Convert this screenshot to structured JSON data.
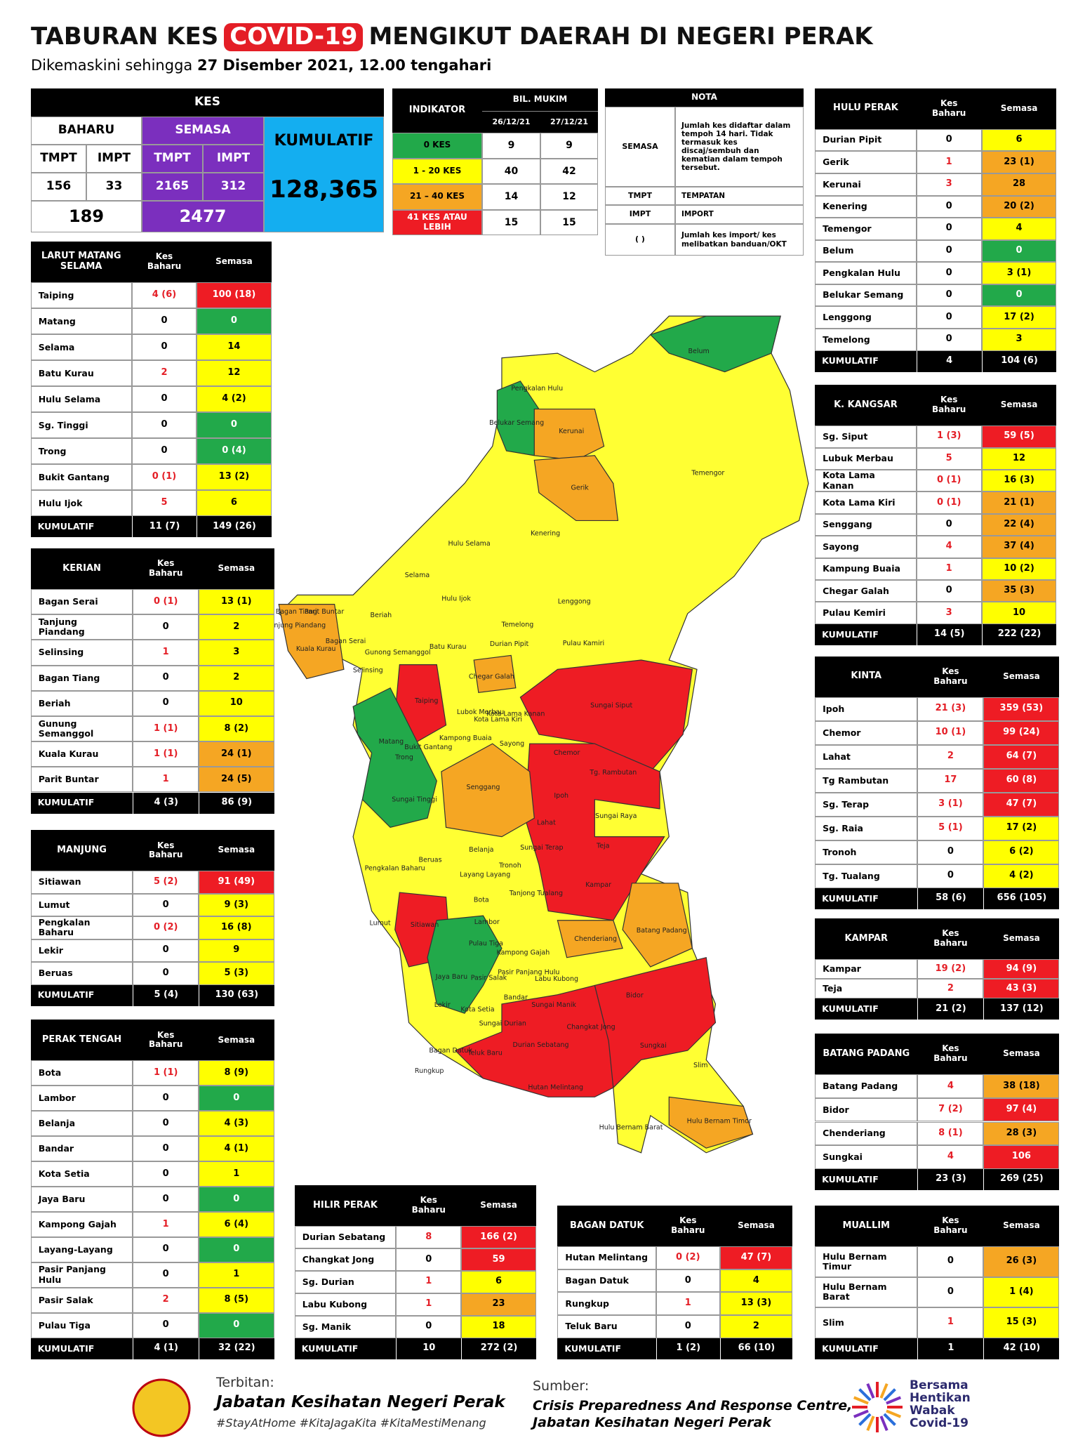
{
  "header": {
    "title_a": "TABURAN KES",
    "title_b": "COVID-19",
    "title_c": "MENGIKUT DAERAH DI NEGERI PERAK",
    "subtitle_a": "Dikemaskini sehingga",
    "subtitle_b": "27 Disember 2021, 12.00 tengahari"
  },
  "summary": {
    "kes": "KES",
    "baharu": "BAHARU",
    "semasa": "SEMASA",
    "cols": [
      "TMPT",
      "IMPT",
      "TMPT",
      "IMPT"
    ],
    "nums": [
      "156",
      "33",
      "2165",
      "312"
    ],
    "baharu_total": "189",
    "semasa_total": "2477",
    "kumulatif": "KUMULATIF",
    "kumulatif_value": "128,365"
  },
  "indicator": {
    "title": "INDIKATOR",
    "bil": "BIL. MUKIM",
    "dates": [
      "26/12/21",
      "27/12/21"
    ],
    "rows": [
      [
        "0 KES",
        "9",
        "9",
        "#22a94a"
      ],
      [
        "1 - 20 KES",
        "40",
        "42",
        "#ffff00"
      ],
      [
        "21 – 40 KES",
        "14",
        "12",
        "#f5a623"
      ],
      [
        "41 KES ATAU LEBIH",
        "15",
        "15",
        "#ee1c24"
      ]
    ]
  },
  "nota": {
    "title": "NOTA",
    "rows": [
      [
        "SEMASA",
        "Jumlah kes didaftar dalam tempoh 14 hari. Tidak termasuk kes discaj/sembuh dan kematian dalam tempoh tersebut."
      ],
      [
        "TMPT",
        "TEMPATAN"
      ],
      [
        "IMPT",
        "IMPORT"
      ],
      [
        "( )",
        "Jumlah kes import/ kes melibatkan banduan/OKT"
      ]
    ]
  },
  "tables": [
    {
      "title": "LARUT MATANG SELAMA",
      "h1": "Kes Baharu",
      "h2": "Semasa",
      "rows": [
        [
          "Taiping",
          "4 (6)",
          "100 (18)",
          "#ee1c24"
        ],
        [
          "Matang",
          "0",
          "0",
          "#22a94a"
        ],
        [
          "Selama",
          "0",
          "14",
          "#ffff00"
        ],
        [
          "Batu Kurau",
          "2",
          "12",
          "#ffff00"
        ],
        [
          "Hulu Selama",
          "0",
          "4 (2)",
          "#ffff00"
        ],
        [
          "Sg. Tinggi",
          "0",
          "0",
          "#22a94a"
        ],
        [
          "Trong",
          "0",
          "0 (4)",
          "#22a94a"
        ],
        [
          "Bukit Gantang",
          "0 (1)",
          "13 (2)",
          "#ffff00"
        ],
        [
          "Hulu Ijok",
          "5",
          "6",
          "#ffff00"
        ]
      ],
      "total": [
        "KUMULATIF",
        "11 (7)",
        "149 (26)"
      ]
    },
    {
      "title": "KERIAN",
      "h1": "Kes Baharu",
      "h2": "Semasa",
      "rows": [
        [
          "Bagan Serai",
          "0 (1)",
          "13 (1)",
          "#ffff00"
        ],
        [
          "Tanjung Piandang",
          "0",
          "2",
          "#ffff00"
        ],
        [
          "Selinsing",
          "1",
          "3",
          "#ffff00"
        ],
        [
          "Bagan Tiang",
          "0",
          "2",
          "#ffff00"
        ],
        [
          "Beriah",
          "0",
          "10",
          "#ffff00"
        ],
        [
          "Gunung Semanggol",
          "1 (1)",
          "8 (2)",
          "#ffff00"
        ],
        [
          "Kuala Kurau",
          "1 (1)",
          "24 (1)",
          "#f5a623"
        ],
        [
          "Parit Buntar",
          "1",
          "24 (5)",
          "#f5a623"
        ]
      ],
      "total": [
        "KUMULATIF",
        "4 (3)",
        "86 (9)"
      ]
    },
    {
      "title": "MANJUNG",
      "h1": "Kes Baharu",
      "h2": "Semasa",
      "rows": [
        [
          "Sitiawan",
          "5 (2)",
          "91 (49)",
          "#ee1c24"
        ],
        [
          "Lumut",
          "0",
          "9 (3)",
          "#ffff00"
        ],
        [
          "Pengkalan Baharu",
          "0 (2)",
          "16 (8)",
          "#ffff00"
        ],
        [
          "Lekir",
          "0",
          "9",
          "#ffff00"
        ],
        [
          "Beruas",
          "0",
          "5 (3)",
          "#ffff00"
        ]
      ],
      "total": [
        "KUMULATIF",
        "5 (4)",
        "130 (63)"
      ]
    },
    {
      "title": "PERAK TENGAH",
      "h1": "Kes Baharu",
      "h2": "Semasa",
      "rows": [
        [
          "Bota",
          "1 (1)",
          "8 (9)",
          "#ffff00"
        ],
        [
          "Lambor",
          "0",
          "0",
          "#22a94a"
        ],
        [
          "Belanja",
          "0",
          "4 (3)",
          "#ffff00"
        ],
        [
          "Bandar",
          "0",
          "4 (1)",
          "#ffff00"
        ],
        [
          "Kota Setia",
          "0",
          "1",
          "#ffff00"
        ],
        [
          "Jaya Baru",
          "0",
          "0",
          "#22a94a"
        ],
        [
          "Kampong Gajah",
          "1",
          "6 (4)",
          "#ffff00"
        ],
        [
          "Layang-Layang",
          "0",
          "0",
          "#22a94a"
        ],
        [
          "Pasir Panjang Hulu",
          "0",
          "1",
          "#ffff00"
        ],
        [
          "Pasir Salak",
          "2",
          "8 (5)",
          "#ffff00"
        ],
        [
          "Pulau Tiga",
          "0",
          "0",
          "#22a94a"
        ]
      ],
      "total": [
        "KUMULATIF",
        "4 (1)",
        "32 (22)"
      ]
    },
    {
      "title": "HILIR PERAK",
      "h1": "Kes Baharu",
      "h2": "Semasa",
      "rows": [
        [
          "Durian Sebatang",
          "8",
          "166 (2)",
          "#ee1c24"
        ],
        [
          "Changkat Jong",
          "0",
          "59",
          "#ee1c24"
        ],
        [
          "Sg. Durian",
          "1",
          "6",
          "#ffff00"
        ],
        [
          "Labu Kubong",
          "1",
          "23",
          "#f5a623"
        ],
        [
          "Sg. Manik",
          "0",
          "18",
          "#ffff00"
        ]
      ],
      "total": [
        "KUMULATIF",
        "10",
        "272 (2)"
      ]
    },
    {
      "title": "BAGAN DATUK",
      "h1": "Kes Baharu",
      "h2": "Semasa",
      "rows": [
        [
          "Hutan Melintang",
          "0 (2)",
          "47 (7)",
          "#ee1c24"
        ],
        [
          "Bagan Datuk",
          "0",
          "4",
          "#ffff00"
        ],
        [
          "Rungkup",
          "1",
          "13 (3)",
          "#ffff00"
        ],
        [
          "Teluk Baru",
          "0",
          "2",
          "#ffff00"
        ]
      ],
      "total": [
        "KUMULATIF",
        "1 (2)",
        "66 (10)"
      ]
    },
    {
      "title": "HULU PERAK",
      "h1": "Kes Baharu",
      "h2": "Semasa",
      "rows": [
        [
          "Durian Pipit",
          "0",
          "6",
          "#ffff00"
        ],
        [
          "Gerik",
          "1",
          "23 (1)",
          "#f5a623"
        ],
        [
          "Kerunai",
          "3",
          "28",
          "#f5a623"
        ],
        [
          "Kenering",
          "0",
          "20 (2)",
          "#f5a623"
        ],
        [
          "Temengor",
          "0",
          "4",
          "#ffff00"
        ],
        [
          "Belum",
          "0",
          "0",
          "#22a94a"
        ],
        [
          "Pengkalan Hulu",
          "0",
          "3 (1)",
          "#ffff00"
        ],
        [
          "Belukar Semang",
          "0",
          "0",
          "#22a94a"
        ],
        [
          "Lenggong",
          "0",
          "17 (2)",
          "#ffff00"
        ],
        [
          "Temelong",
          "0",
          "3",
          "#ffff00"
        ]
      ],
      "total": [
        "KUMULATIF",
        "4",
        "104 (6)"
      ]
    },
    {
      "title": "K. KANGSAR",
      "h1": "Kes Baharu",
      "h2": "Semasa",
      "rows": [
        [
          "Sg. Siput",
          "1 (3)",
          "59 (5)",
          "#ee1c24"
        ],
        [
          "Lubuk Merbau",
          "5",
          "12",
          "#ffff00"
        ],
        [
          "Kota Lama Kanan",
          "0 (1)",
          "16 (3)",
          "#ffff00"
        ],
        [
          "Kota Lama Kiri",
          "0 (1)",
          "21 (1)",
          "#f5a623"
        ],
        [
          "Senggang",
          "0",
          "22 (4)",
          "#f5a623"
        ],
        [
          "Sayong",
          "4",
          "37 (4)",
          "#f5a623"
        ],
        [
          "Kampung Buaia",
          "1",
          "10 (2)",
          "#ffff00"
        ],
        [
          "Chegar Galah",
          "0",
          "35 (3)",
          "#f5a623"
        ],
        [
          "Pulau Kemiri",
          "3",
          "10",
          "#ffff00"
        ]
      ],
      "total": [
        "KUMULATIF",
        "14 (5)",
        "222 (22)"
      ]
    },
    {
      "title": "KINTA",
      "h1": "Kes Baharu",
      "h2": "Semasa",
      "rows": [
        [
          "Ipoh",
          "21 (3)",
          "359 (53)",
          "#ee1c24"
        ],
        [
          "Chemor",
          "10 (1)",
          "99 (24)",
          "#ee1c24"
        ],
        [
          "Lahat",
          "2",
          "64 (7)",
          "#ee1c24"
        ],
        [
          "Tg Rambutan",
          "17",
          "60 (8)",
          "#ee1c24"
        ],
        [
          "Sg. Terap",
          "3 (1)",
          "47 (7)",
          "#ee1c24"
        ],
        [
          "Sg. Raia",
          "5 (1)",
          "17 (2)",
          "#ffff00"
        ],
        [
          "Tronoh",
          "0",
          "6 (2)",
          "#ffff00"
        ],
        [
          "Tg. Tualang",
          "0",
          "4 (2)",
          "#ffff00"
        ]
      ],
      "total": [
        "KUMULATIF",
        "58 (6)",
        "656 (105)"
      ]
    },
    {
      "title": "KAMPAR",
      "h1": "Kes Baharu",
      "h2": "Semasa",
      "rows": [
        [
          "Kampar",
          "19 (2)",
          "94 (9)",
          "#ee1c24"
        ],
        [
          "Teja",
          "2",
          "43 (3)",
          "#ee1c24"
        ]
      ],
      "total": [
        "KUMULATIF",
        "21 (2)",
        "137 (12)"
      ]
    },
    {
      "title": "BATANG PADANG",
      "h1": "Kes Baharu",
      "h2": "Semasa",
      "rows": [
        [
          "Batang Padang",
          "4",
          "38 (18)",
          "#f5a623"
        ],
        [
          "Bidor",
          "7 (2)",
          "97 (4)",
          "#ee1c24"
        ],
        [
          "Chenderiang",
          "8 (1)",
          "28 (3)",
          "#f5a623"
        ],
        [
          "Sungkai",
          "4",
          "106",
          "#ee1c24"
        ]
      ],
      "total": [
        "KUMULATIF",
        "23 (3)",
        "269 (25)"
      ]
    },
    {
      "title": "MUALLIM",
      "h1": "Kes Baharu",
      "h2": "Semasa",
      "rows": [
        [
          "Hulu Bernam Timur",
          "0",
          "26 (3)",
          "#f5a623"
        ],
        [
          "Hulu Bernam Barat",
          "0",
          "1 (4)",
          "#ffff00"
        ],
        [
          "Slim",
          "1",
          "15 (3)",
          "#ffff00"
        ]
      ],
      "total": [
        "KUMULATIF",
        "1",
        "42 (10)"
      ]
    }
  ],
  "map": {
    "labels": [
      "Belum",
      "Pengkalan Hulu",
      "Belukar Semang",
      "Kerunai",
      "Gerik",
      "Temengor",
      "Kenering",
      "Hulu Selama",
      "Selama",
      "Hulu Ijok",
      "Lenggong",
      "Bagan Tiang",
      "Parit Buntar",
      "Tanjung Piandang",
      "Beriah",
      "Temelong",
      "Kuala Kurau",
      "Bagan Serai",
      "Gunong Semanggol",
      "Batu Kurau",
      "Durian Pipit",
      "Pulau Kamiri",
      "Selinsing",
      "Chegar Galah",
      "Taiping",
      "Sungai Siput",
      "Lubok Merbau",
      "Kota Lama Kiri",
      "Kota Lama Kanan",
      "Matang",
      "Kampong Buaia",
      "Sayong",
      "Bukit Gantang",
      "Chemor",
      "Trong",
      "Tg. Rambutan",
      "Senggang",
      "Ipoh",
      "Sungai Tinggi",
      "Sungai Raya",
      "Lahat",
      "Sungai Terap",
      "Teja",
      "Belanja",
      "Pengkalan Baharu",
      "Beruas",
      "Tronoh",
      "Layang Layang",
      "Tanjong Tualang",
      "Kampar",
      "Bota",
      "Lumut",
      "Sitiawan",
      "Lambor",
      "Batang Padang",
      "Chenderiang",
      "Pulau Tiga",
      "Kampong Gajah",
      "Pasir Panjang Hulu",
      "Jaya Baru",
      "Pasir Salak",
      "Labu Kubong",
      "Bidor",
      "Bandar",
      "Sungai Manik",
      "Lekir",
      "Kota Setia",
      "Sungai Durian",
      "Changkat Jong",
      "Durian Sebatang",
      "Sungkai",
      "Bagan Datuk",
      "Teluk Baru",
      "Slim",
      "Rungkup",
      "Hutan Melintang",
      "Hulu Bernam Timor",
      "Hulu Bernam Barat"
    ]
  },
  "footer": {
    "terbitan": "Terbitan:",
    "publisher": "Jabatan Kesihatan Negeri Perak",
    "hashtags": "#StayAtHome #KitaJagaKita #KitaMestiMenang",
    "sumber": "Sumber:",
    "source_a": "Crisis Preparedness And Response Centre,",
    "source_b": "Jabatan Kesihatan Negeri Perak",
    "logo": [
      "Bersama",
      "Hentikan",
      "Wabak",
      "Covid-19"
    ]
  }
}
